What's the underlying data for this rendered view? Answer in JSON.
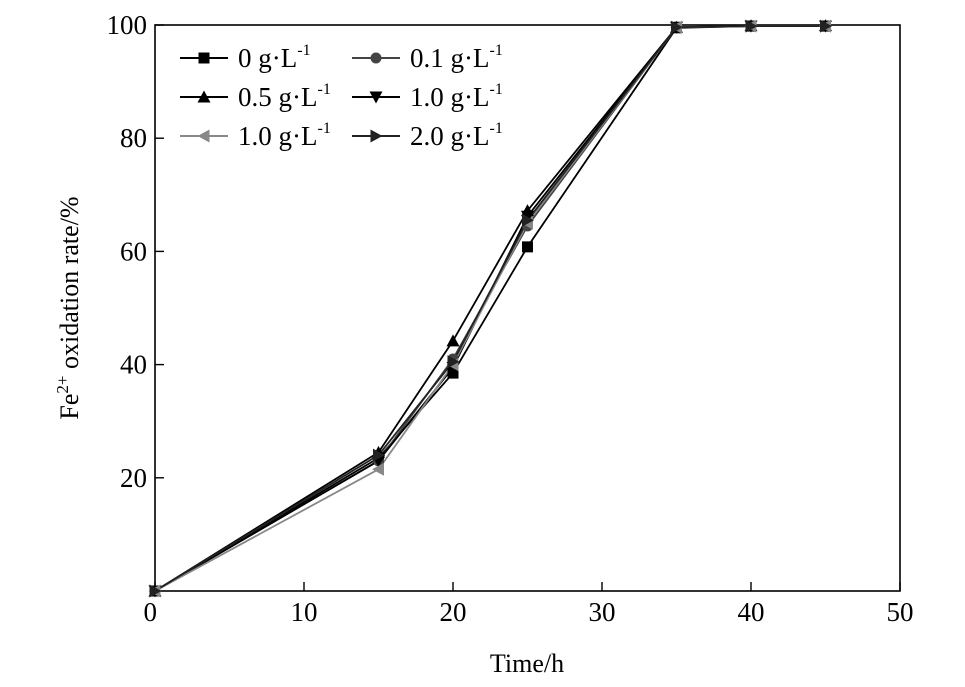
{
  "chart_data": {
    "type": "line",
    "title": "",
    "xlabel": "Time/h",
    "ylabel_main": "Fe",
    "ylabel_sup": "2+",
    "ylabel_rest": " oxidation rate/%",
    "xlim": [
      0,
      50
    ],
    "ylim": [
      0,
      100
    ],
    "xticks": [
      0,
      10,
      20,
      30,
      40,
      50
    ],
    "yticks": [
      20,
      40,
      60,
      80,
      100
    ],
    "grid": false,
    "legend": "top-left, two columns",
    "x": [
      0,
      15,
      20,
      25,
      35,
      40,
      45
    ],
    "series": [
      {
        "name_main": "0 g·L",
        "name_sup": "-1",
        "marker": "square",
        "color": "#000000",
        "values": [
          0,
          23.5,
          38.5,
          60.8,
          99.5,
          99.8,
          99.8
        ]
      },
      {
        "name_main": "0.1 g·L",
        "name_sup": "-1",
        "marker": "circle",
        "color": "#444444",
        "values": [
          0,
          23.0,
          41.0,
          64.5,
          99.6,
          99.8,
          99.8
        ]
      },
      {
        "name_main": "0.5 g·L",
        "name_sup": "-1",
        "marker": "triangle-up",
        "color": "#000000",
        "values": [
          0,
          24.5,
          44.2,
          67.2,
          99.6,
          99.9,
          99.9
        ]
      },
      {
        "name_main": "1.0 g·L",
        "name_sup": "-1",
        "marker": "triangle-down",
        "color": "#000000",
        "values": [
          0,
          23.0,
          39.5,
          66.2,
          99.6,
          99.8,
          99.8
        ]
      },
      {
        "name_main": "1.0 g·L",
        "name_sup": "-1",
        "marker": "triangle-left",
        "color": "#888888",
        "values": [
          0,
          21.5,
          40.0,
          65.0,
          99.6,
          99.8,
          99.8
        ]
      },
      {
        "name_main": "2.0 g·L",
        "name_sup": "-1",
        "marker": "triangle-right",
        "color": "#222222",
        "values": [
          0,
          24.0,
          40.5,
          65.5,
          99.6,
          99.8,
          99.8
        ]
      }
    ]
  }
}
